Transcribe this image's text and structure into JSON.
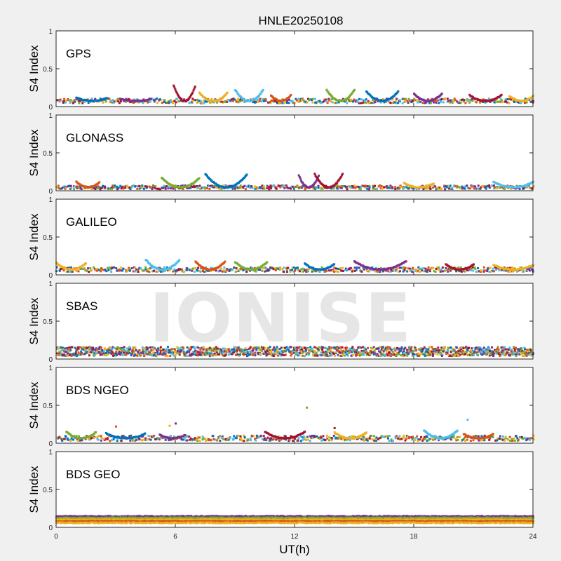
{
  "figure": {
    "title": "HNLE20250108",
    "watermark": "IONISE",
    "xlabel": "UT(h)"
  },
  "chart_data": {
    "type": "scatter",
    "title": "HNLE20250108",
    "xlabel": "UT(h)",
    "ylabel": "S4 Index",
    "xlim": [
      0,
      24
    ],
    "ylim": [
      0,
      1
    ],
    "xticks": [
      0,
      6,
      12,
      18,
      24
    ],
    "yticks": [
      0,
      0.5,
      1
    ],
    "ytick_labels": [
      "0",
      "0.5",
      "1"
    ],
    "grid": true,
    "series_colors": [
      "#0072BD",
      "#D95319",
      "#EDB120",
      "#7E2F8E",
      "#77AC30",
      "#4DBEEE",
      "#A2142F"
    ],
    "panels": [
      {
        "label": "GPS",
        "ylabel": "S4 Index",
        "baseline": 0.075,
        "spread": 0.03,
        "arcs": [
          [
            1.0,
            2.6,
            0.12
          ],
          [
            3.2,
            4.8,
            0.1
          ],
          [
            5.9,
            7.0,
            0.28
          ],
          [
            7.2,
            8.6,
            0.18
          ],
          [
            9.0,
            10.4,
            0.22
          ],
          [
            10.8,
            11.8,
            0.15
          ],
          [
            13.6,
            15.0,
            0.22
          ],
          [
            15.6,
            17.2,
            0.2
          ],
          [
            18.0,
            19.4,
            0.17
          ],
          [
            20.8,
            22.4,
            0.15
          ],
          [
            22.8,
            24.0,
            0.14
          ]
        ],
        "spikes": []
      },
      {
        "label": "GLONASS",
        "ylabel": "S4 Index",
        "baseline": 0.045,
        "spread": 0.025,
        "arcs": [
          [
            1.0,
            2.2,
            0.12
          ],
          [
            5.3,
            7.2,
            0.17
          ],
          [
            7.5,
            9.6,
            0.22
          ],
          [
            12.2,
            13.2,
            0.2
          ],
          [
            13.0,
            14.4,
            0.22
          ],
          [
            17.5,
            19.0,
            0.1
          ],
          [
            22.0,
            24.0,
            0.12
          ]
        ],
        "spikes": []
      },
      {
        "label": "GALILEO",
        "ylabel": "S4 Index",
        "baseline": 0.07,
        "spread": 0.03,
        "arcs": [
          [
            0.0,
            1.5,
            0.16
          ],
          [
            4.5,
            6.2,
            0.2
          ],
          [
            7.0,
            8.5,
            0.18
          ],
          [
            9.0,
            10.6,
            0.17
          ],
          [
            12.5,
            14.0,
            0.15
          ],
          [
            15.0,
            17.6,
            0.18
          ],
          [
            19.6,
            21.0,
            0.14
          ],
          [
            22.0,
            24.0,
            0.13
          ]
        ],
        "spikes": []
      },
      {
        "label": "SBAS",
        "ylabel": "S4 Index",
        "baseline": 0.1,
        "spread": 0.06,
        "arcs": [],
        "spikes": []
      },
      {
        "label": "BDS NGEO",
        "ylabel": "S4 Index",
        "baseline": 0.065,
        "spread": 0.035,
        "arcs": [
          [
            0.5,
            2.0,
            0.15
          ],
          [
            2.5,
            4.5,
            0.13
          ],
          [
            5.2,
            6.5,
            0.11
          ],
          [
            10.5,
            12.5,
            0.15
          ],
          [
            14.0,
            15.6,
            0.14
          ],
          [
            18.5,
            20.2,
            0.17
          ],
          [
            20.5,
            22.0,
            0.12
          ]
        ],
        "spikes": [
          [
            3.0,
            0.22
          ],
          [
            5.7,
            0.23
          ],
          [
            6.0,
            0.26
          ],
          [
            12.6,
            0.47
          ],
          [
            20.7,
            0.31
          ],
          [
            14.0,
            0.2
          ]
        ]
      },
      {
        "label": "BDS GEO",
        "ylabel": "S4 Index",
        "baseline": 0.1,
        "spread": 0.0,
        "arcs": [],
        "spikes": [],
        "bands": [
          0.145,
          0.125,
          0.1,
          0.08,
          0.06
        ]
      }
    ]
  }
}
